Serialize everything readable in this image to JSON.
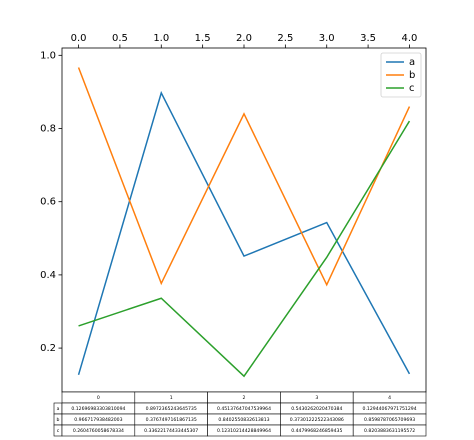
{
  "chart_data": {
    "type": "line",
    "x": [
      0,
      1,
      2,
      3,
      4
    ],
    "series": [
      {
        "name": "a",
        "color": "#1f77b4",
        "values": [
          0.12696983303810094,
          0.8972365243645735,
          0.45137647047539964,
          0.5430262020470384,
          0.12944067971751294
        ]
      },
      {
        "name": "b",
        "color": "#ff7f0e",
        "values": [
          0.966717938482003,
          0.3767497161867135,
          0.8402550832613813,
          0.37301222522343086,
          0.8598787065709693
        ]
      },
      {
        "name": "c",
        "color": "#2ca02c",
        "values": [
          0.2604760058678334,
          0.33622174433445307,
          0.12310214428849964,
          0.4479968246859435,
          0.8203883631195572
        ]
      }
    ],
    "xlim": [
      -0.2,
      4.2
    ],
    "xticks": [
      {
        "value": 0,
        "label": "0.0"
      },
      0.5,
      {
        "value": 1,
        "label": "1.0"
      },
      1.5,
      {
        "value": 2,
        "label": "2.0"
      },
      2.5,
      {
        "value": 3,
        "label": "3.0"
      },
      3.5,
      {
        "value": 4,
        "label": "4.0"
      }
    ],
    "ylim": [
      0.08,
      1.02
    ],
    "yticks": [
      0.2,
      0.4,
      0.6,
      0.8,
      {
        "value": 1,
        "label": "1.0"
      }
    ],
    "legend": "upper right",
    "table": {
      "columns": [
        0,
        1,
        2,
        3,
        4
      ]
    }
  }
}
